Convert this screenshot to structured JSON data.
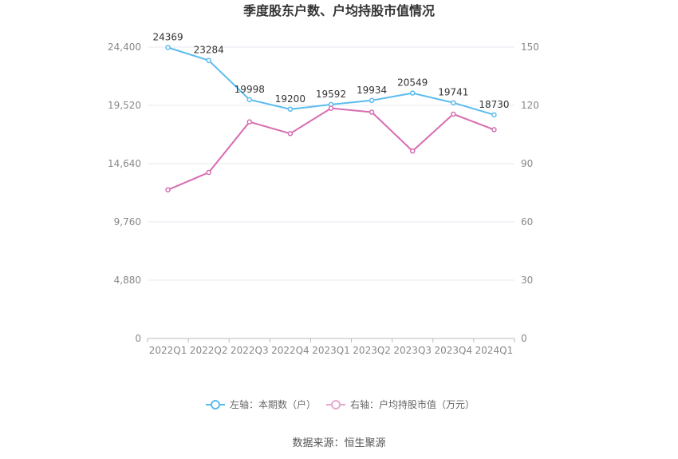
{
  "title": "季度股东户数、户均持股市值情况",
  "source": "数据来源：恒生聚源",
  "colors": {
    "left_series": "#5bbcee",
    "right_series": "#d76db1",
    "grid": "#e6e8f2",
    "axis": "#bbbbbb"
  },
  "chart_data": {
    "type": "line",
    "title": "季度股东户数、户均持股市值情况",
    "categories": [
      "2022Q1",
      "2022Q2",
      "2022Q3",
      "2022Q4",
      "2023Q1",
      "2023Q2",
      "2023Q3",
      "2023Q4",
      "2024Q1"
    ],
    "left_axis": {
      "ylim": [
        0,
        24400
      ],
      "ticks": [
        "0",
        "4,880",
        "9,760",
        "14,640",
        "19,520",
        "24,400"
      ]
    },
    "right_axis": {
      "ylim": [
        0,
        150
      ],
      "ticks": [
        "0",
        "30",
        "60",
        "90",
        "120",
        "150"
      ]
    },
    "series": [
      {
        "name": "左轴：本期数（户）",
        "axis": "left",
        "color": "#5bbcee",
        "values": [
          24369,
          23284,
          19998,
          19200,
          19592,
          19934,
          20549,
          19741,
          18730
        ],
        "labels": [
          "24369",
          "23284",
          "19998",
          "19200",
          "19592",
          "19934",
          "20549",
          "19741",
          "18730"
        ]
      },
      {
        "name": "右轴：户均持股市值（万元）",
        "axis": "right",
        "color": "#d76db1",
        "values": [
          76.5,
          85.5,
          111.5,
          105.5,
          118.5,
          116.5,
          96.5,
          115.5,
          107.5
        ]
      }
    ],
    "grid": true,
    "legend": "bottom-center"
  }
}
